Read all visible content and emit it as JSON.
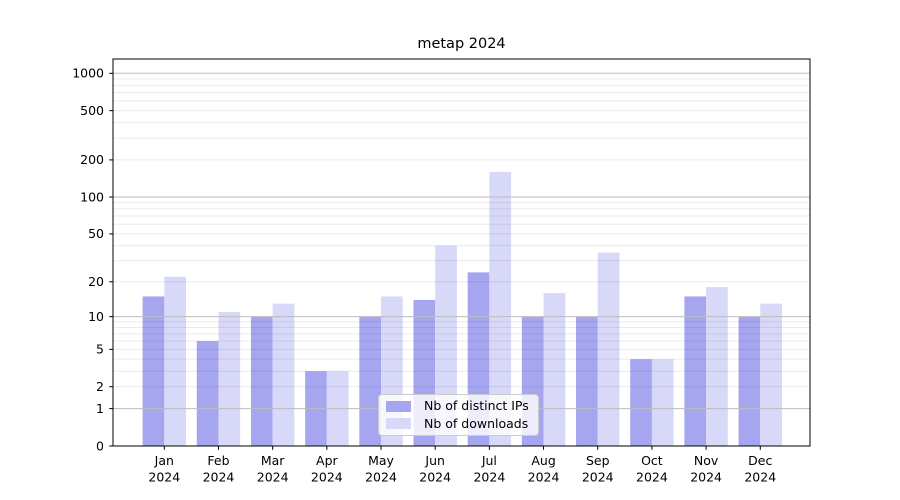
{
  "chart_data": {
    "type": "bar",
    "title": "metap 2024",
    "categories": [
      "Jan 2024",
      "Feb 2024",
      "Mar 2024",
      "Apr 2024",
      "May 2024",
      "Jun 2024",
      "Jul 2024",
      "Aug 2024",
      "Sep 2024",
      "Oct 2024",
      "Nov 2024",
      "Dec 2024"
    ],
    "series": [
      {
        "name": "Nb of distinct IPs",
        "color": "#a6a6f0",
        "values": [
          15,
          6,
          10,
          3,
          10,
          14,
          24,
          10,
          10,
          4,
          15,
          10
        ]
      },
      {
        "name": "Nb of downloads",
        "color": "#d8d8f8",
        "values": [
          22,
          11,
          13,
          3,
          15,
          40,
          160,
          16,
          35,
          4,
          18,
          13
        ]
      }
    ],
    "xlabel": "",
    "ylabel": "",
    "yticks": [
      0,
      1,
      2,
      5,
      10,
      20,
      50,
      100,
      200,
      500,
      1000
    ],
    "yscale": "log1p",
    "ylim": [
      0,
      1300
    ],
    "grid": true,
    "legend_position": "lower center"
  },
  "colors": {
    "background": "#ffffff",
    "major_grid": "#bdbdbd",
    "minor_grid": "rgba(0,0,0,0.08)",
    "spine": "#000000",
    "text": "#000000",
    "legend_bg": "rgba(255,255,255,0.8)",
    "legend_border": "#cccccc"
  }
}
